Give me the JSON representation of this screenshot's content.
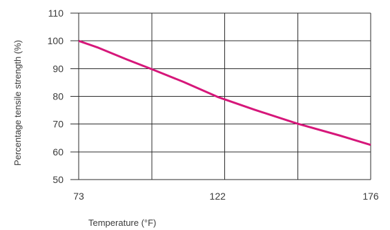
{
  "chart_data": {
    "type": "line",
    "xlabel": "Temperature (°F)",
    "ylabel": "Percentage tensile strength (%)",
    "x_ticks": [
      73,
      122,
      176
    ],
    "y_ticks": [
      50,
      60,
      70,
      80,
      90,
      100,
      110
    ],
    "xlim": [
      73,
      176
    ],
    "ylim": [
      50,
      110
    ],
    "grid": true,
    "series": [
      {
        "color": "#d6177a",
        "x": [
          73,
          80,
          90,
          100,
          110,
          122,
          135,
          150,
          165,
          176
        ],
        "y": [
          100,
          97.5,
          93.3,
          89.3,
          85.2,
          79.8,
          75.2,
          70.2,
          65.9,
          62.5
        ]
      }
    ]
  }
}
